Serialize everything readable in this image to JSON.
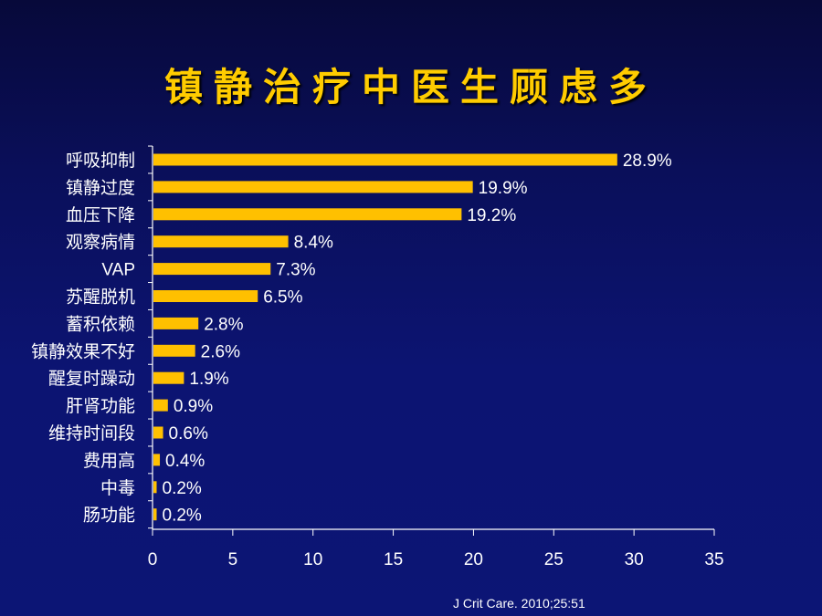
{
  "title": "镇静治疗中医生顾虑多",
  "source": "J Crit Care. 2010;25:51",
  "chart_data": {
    "type": "bar",
    "orientation": "horizontal",
    "title": "镇静治疗中医生顾虑多",
    "categories": [
      "呼吸抑制",
      "镇静过度",
      "血压下降",
      "观察病情",
      "VAP",
      "苏醒脱机",
      "蓄积依赖",
      "镇静效果不好",
      "醒复时躁动",
      "肝肾功能",
      "维持时间段",
      "费用高",
      "中毒",
      "肠功能"
    ],
    "values": [
      28.9,
      19.9,
      19.2,
      8.4,
      7.3,
      6.5,
      2.8,
      2.6,
      1.9,
      0.9,
      0.6,
      0.4,
      0.2,
      0.2
    ],
    "data_labels": [
      "28.9%",
      "19.9%",
      "19.2%",
      "8.4%",
      "7.3%",
      "6.5%",
      "2.8%",
      "2.6%",
      "1.9%",
      "0.9%",
      "0.6%",
      "0.4%",
      "0.2%",
      "0.2%"
    ],
    "xlim": [
      0,
      35
    ],
    "xticks": [
      0,
      5,
      10,
      15,
      20,
      25,
      30,
      35
    ],
    "xlabel": "",
    "ylabel": "",
    "grid": false,
    "legend": "none",
    "bar_color": "#ffc000",
    "axis_color": "#ffffff"
  }
}
